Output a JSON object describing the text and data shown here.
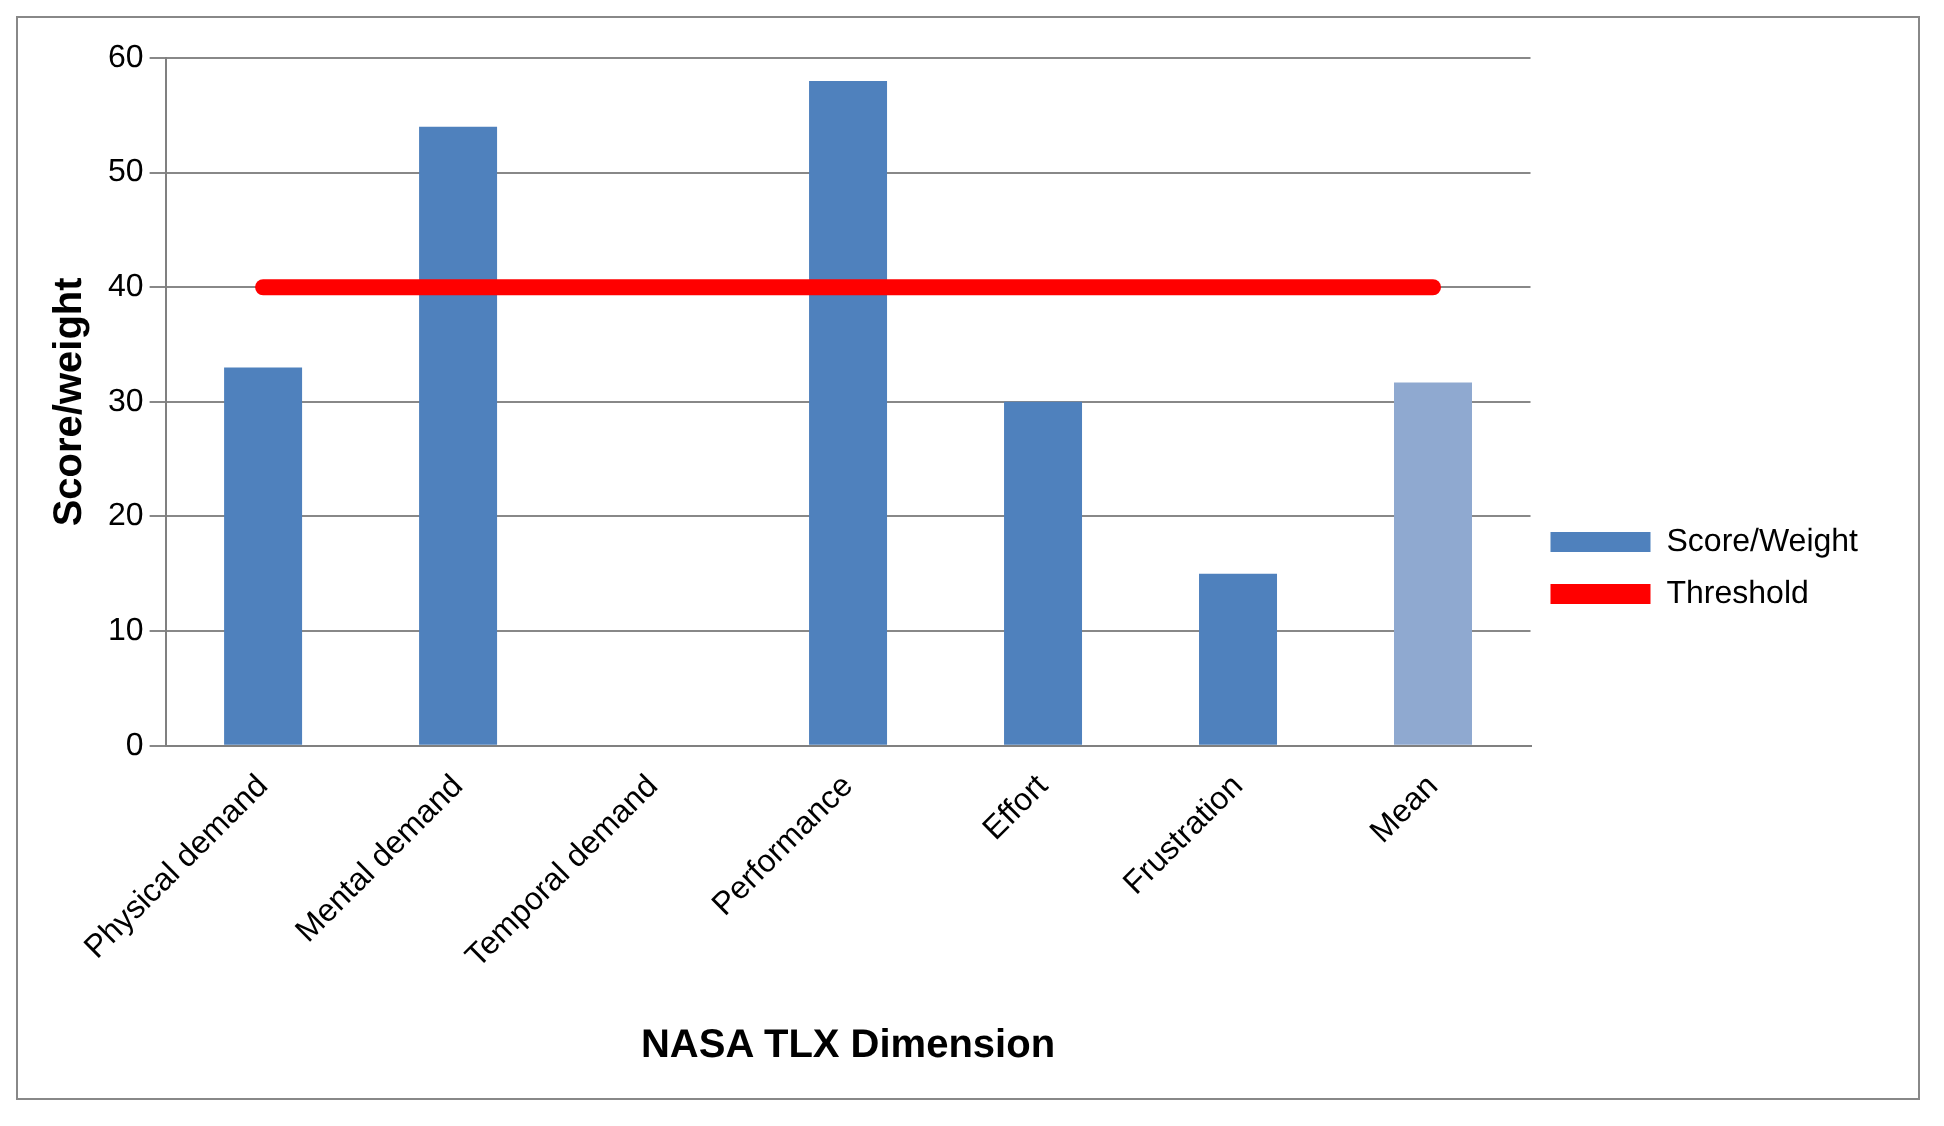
{
  "chart_data": {
    "type": "bar",
    "xlabel": "NASA TLX Dimension",
    "ylabel": "Score/weight",
    "categories": [
      "Physical demand",
      "Mental demand",
      "Temporal demand",
      "Performance",
      "Effort",
      "Frustration",
      "Mean"
    ],
    "series": [
      {
        "name": "Score/Weight",
        "color": "#4f81bd",
        "colors": [
          "#4f81bd",
          "#4f81bd",
          "#4f81bd",
          "#4f81bd",
          "#4f81bd",
          "#4f81bd",
          "#8fa9d0"
        ],
        "values": [
          33,
          54,
          0,
          58,
          30,
          15,
          31.7
        ]
      },
      {
        "name": "Threshold",
        "type": "line",
        "color": "#ff0000",
        "values": [
          40,
          40,
          40,
          40,
          40,
          40,
          40
        ]
      }
    ],
    "ylim": [
      0,
      60
    ],
    "yticks": [
      0,
      10,
      20,
      30,
      40,
      50,
      60
    ],
    "grid": "y",
    "legend": "right",
    "marker": "none"
  }
}
